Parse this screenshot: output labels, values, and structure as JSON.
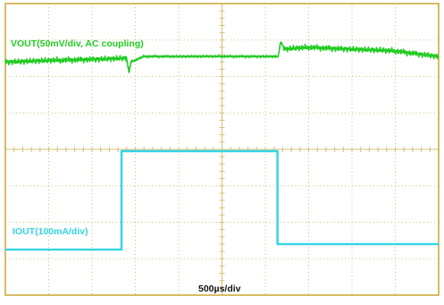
{
  "chart_data": {
    "type": "line",
    "title": "",
    "annotations": {
      "vout_label": "VOUT(50mV/div, AC coupling)",
      "iout_label": "IOUT(100mA/div)",
      "timebase_label": "500µs/div"
    },
    "grid": true,
    "divisions": {
      "x": 10,
      "y": 8
    },
    "x": {
      "unit": "div",
      "range": [
        0,
        10
      ]
    },
    "y": {
      "unit": "div",
      "range": [
        0,
        8
      ]
    },
    "series": [
      {
        "name": "VOUT(50mV/div, AC coupling)",
        "color": "#22cc22",
        "points": [
          [
            0.0,
            1.6
          ],
          [
            2.8,
            1.5
          ],
          [
            2.85,
            1.9
          ],
          [
            2.9,
            1.6
          ],
          [
            3.2,
            1.45
          ],
          [
            4.5,
            1.45
          ],
          [
            6.3,
            1.45
          ],
          [
            6.35,
            1.05
          ],
          [
            6.45,
            1.25
          ],
          [
            7.0,
            1.2
          ],
          [
            9.0,
            1.3
          ],
          [
            10.0,
            1.45
          ]
        ]
      },
      {
        "name": "IOUT(100mA/div)",
        "color": "#33d4e4",
        "points": [
          [
            0.0,
            6.75
          ],
          [
            2.68,
            6.75
          ],
          [
            2.68,
            4.05
          ],
          [
            6.28,
            4.05
          ],
          [
            6.28,
            6.6
          ],
          [
            10.0,
            6.6
          ]
        ]
      }
    ]
  },
  "colors": {
    "background": "#ffffff",
    "frame": "#c8a530",
    "grid": "#d6c07a",
    "vout": "#22cc22",
    "iout": "#33d4e4",
    "text": "#111111"
  }
}
